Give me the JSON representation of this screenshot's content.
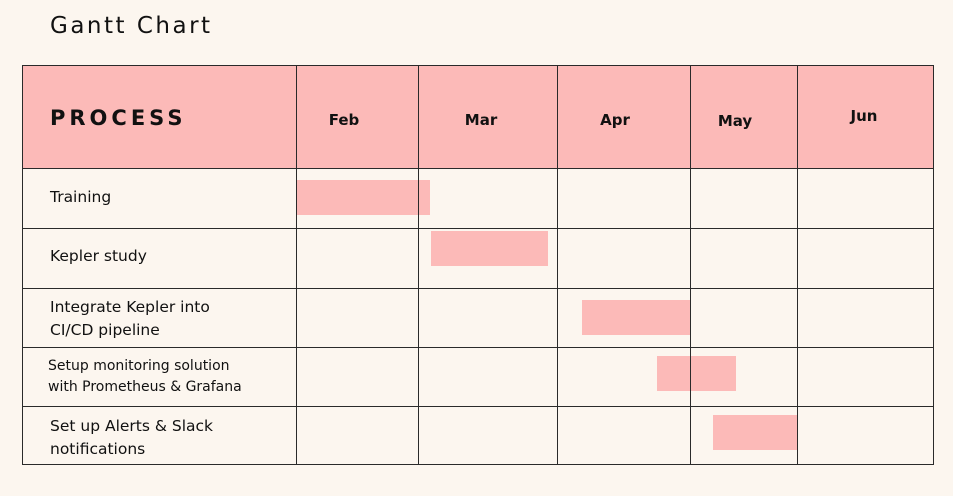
{
  "title": "Gantt Chart",
  "process_header": "PROCESS",
  "months": [
    "Feb",
    "Mar",
    "Apr",
    "May",
    "Jun"
  ],
  "tasks": [
    {
      "lines": [
        "Training"
      ]
    },
    {
      "lines": [
        "Kepler study"
      ]
    },
    {
      "lines": [
        "Integrate Kepler into",
        "CI/CD pipeline"
      ]
    },
    {
      "lines": [
        "Setup monitoring solution",
        "with Prometheus & Grafana"
      ]
    },
    {
      "lines": [
        "Set up Alerts & Slack",
        "notifications"
      ]
    }
  ],
  "colors": {
    "header_bg": "#fcbab8",
    "bar": "#fcbab8",
    "page_bg": "#fcf6ef"
  },
  "chart_data": {
    "type": "gantt",
    "title": "Gantt Chart",
    "categories": [
      "Feb",
      "Mar",
      "Apr",
      "May",
      "Jun"
    ],
    "tasks": [
      {
        "name": "Training",
        "start": "Feb",
        "end": "Mar (early)"
      },
      {
        "name": "Kepler study",
        "start": "Mar",
        "end": "Mar (late)"
      },
      {
        "name": "Integrate Kepler into CI/CD pipeline",
        "start": "Apr (early)",
        "end": "Apr (end)"
      },
      {
        "name": "Setup monitoring solution with Prometheus & Grafana",
        "start": "Apr (late)",
        "end": "May (mid)"
      },
      {
        "name": "Set up Alerts & Slack notifications",
        "start": "May (mid)",
        "end": "May (end)"
      }
    ]
  }
}
